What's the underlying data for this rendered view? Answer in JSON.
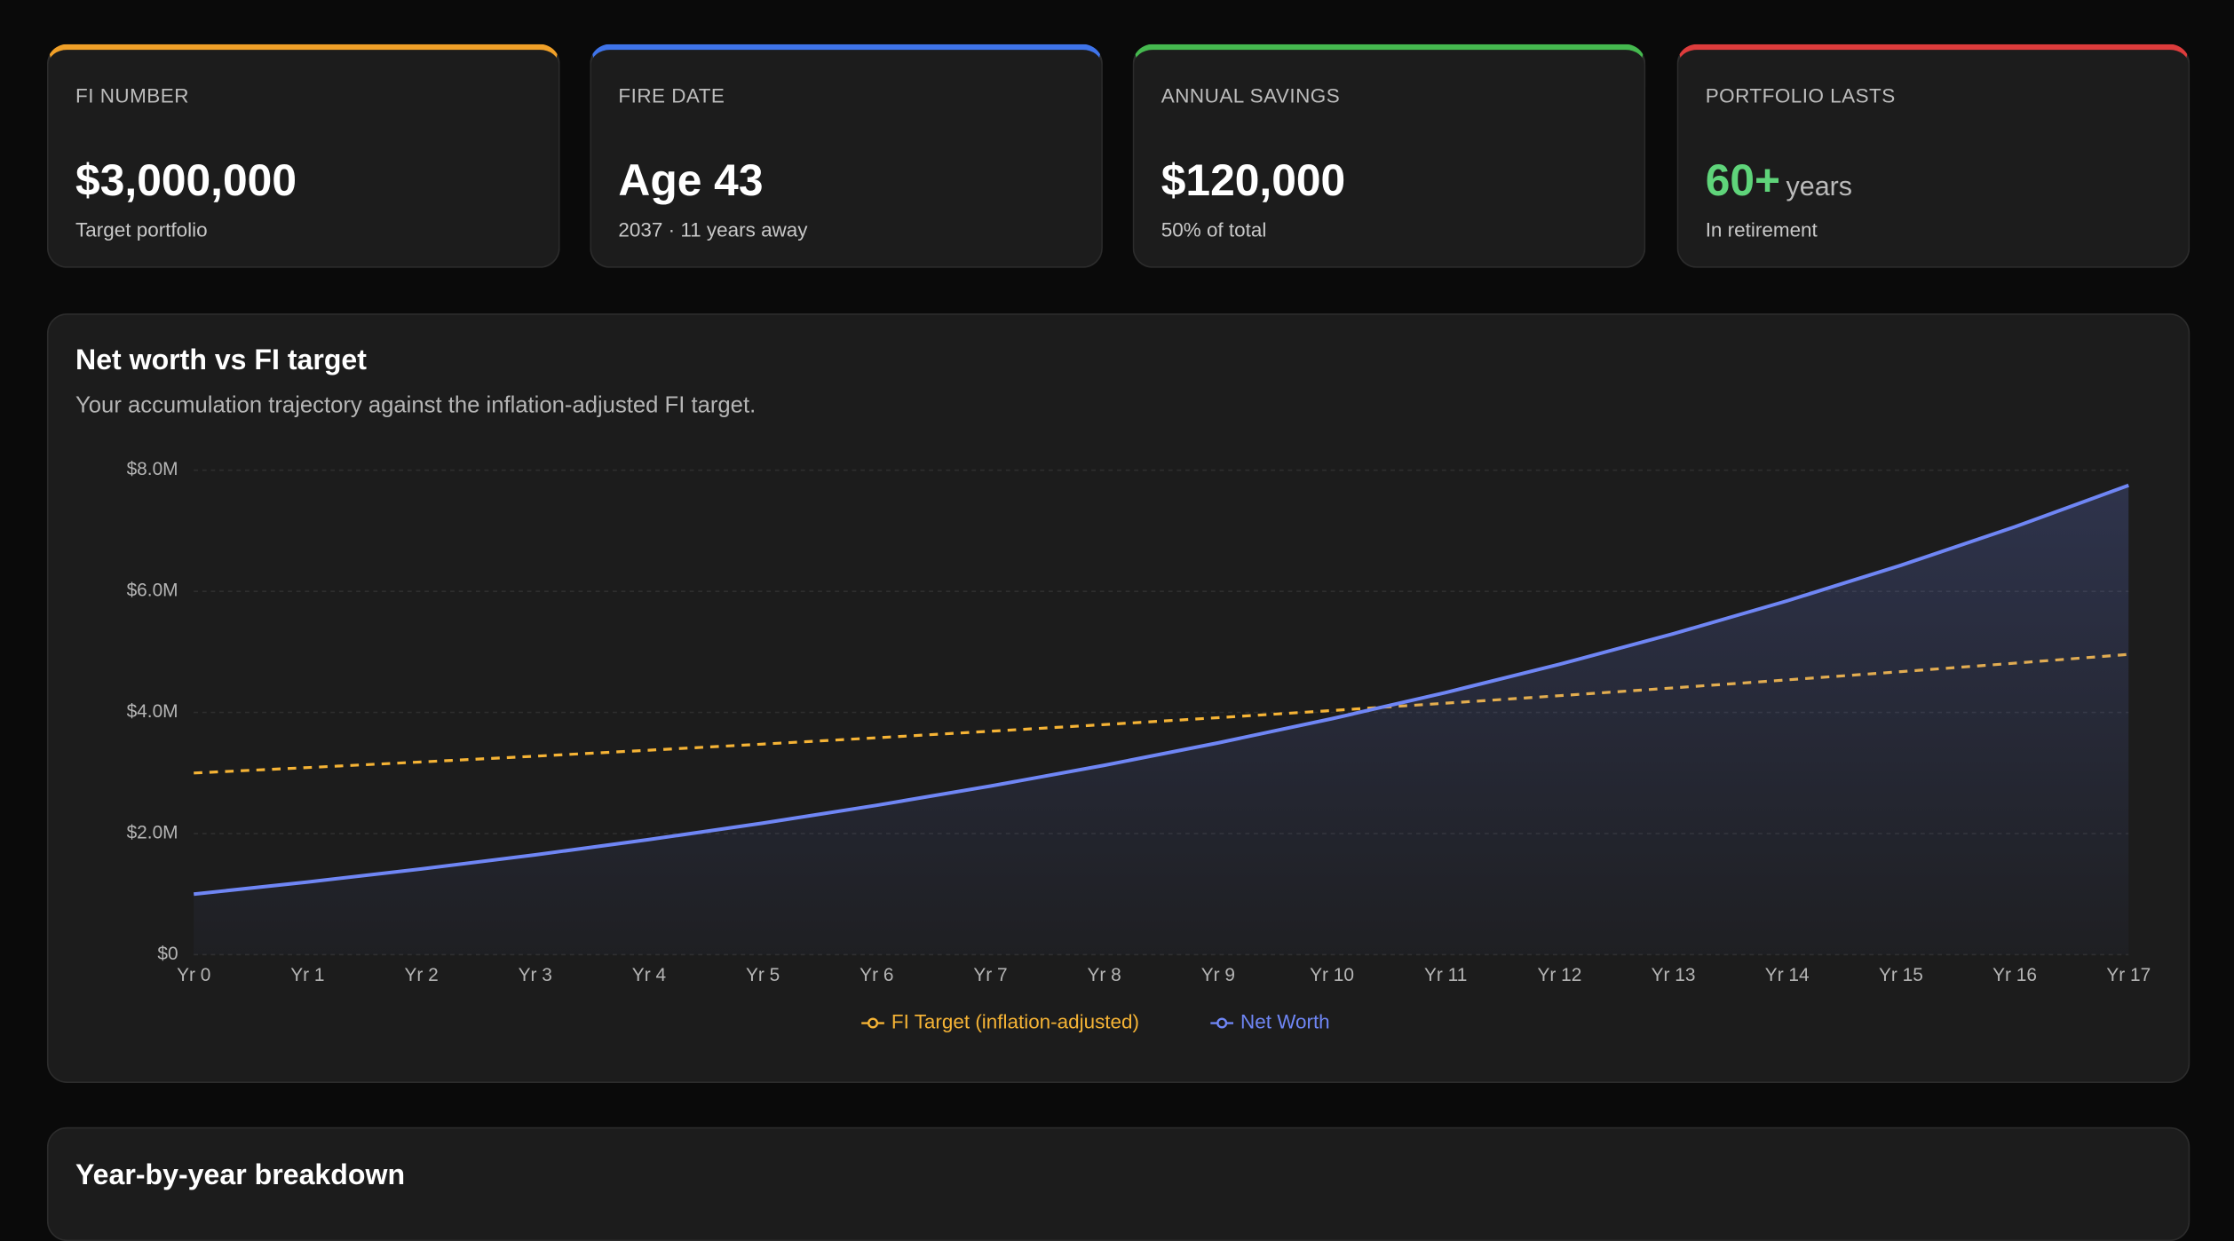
{
  "cards": [
    {
      "label": "FI NUMBER",
      "value": "$3,000,000",
      "note": "Target portfolio"
    },
    {
      "label": "FIRE DATE",
      "value": "Age 43",
      "note": "2037 · 11 years away"
    },
    {
      "label": "ANNUAL SAVINGS",
      "value": "$120,000",
      "note": "50% of total"
    },
    {
      "label": "PORTFOLIO LASTS",
      "value": "60+",
      "unit": "years",
      "note": "In retirement"
    }
  ],
  "chart_data": {
    "type": "line",
    "title": "Net worth vs FI target",
    "subtitle": "Your accumulation trajectory against the inflation-adjusted FI target.",
    "categories": [
      "Yr 0",
      "Yr 1",
      "Yr 2",
      "Yr 3",
      "Yr 4",
      "Yr 5",
      "Yr 6",
      "Yr 7",
      "Yr 8",
      "Yr 9",
      "Yr 10",
      "Yr 11",
      "Yr 12",
      "Yr 13",
      "Yr 14",
      "Yr 15",
      "Yr 16",
      "Yr 17"
    ],
    "series": [
      {
        "name": "FI Target (inflation-adjusted)",
        "color": "#f5b335",
        "dashed": true,
        "values": [
          3000000,
          3090000,
          3183000,
          3278000,
          3377000,
          3478000,
          3582000,
          3690000,
          3800000,
          3914000,
          4032000,
          4153000,
          4277000,
          4406000,
          4538000,
          4674000,
          4814000,
          4959000
        ]
      },
      {
        "name": "Net Worth",
        "color": "#6f86f5",
        "area": true,
        "values": [
          1000000,
          1200000,
          1416000,
          1649000,
          1901000,
          2173000,
          2467000,
          2785000,
          3127000,
          3498000,
          3897000,
          4329000,
          4795000,
          5299000,
          5843000,
          6430000,
          7065000,
          7750000
        ]
      }
    ],
    "ylim": [
      0,
      8000000
    ],
    "yticks": [
      {
        "value": 0,
        "label": "$0"
      },
      {
        "value": 2000000,
        "label": "$2.0M"
      },
      {
        "value": 4000000,
        "label": "$4.0M"
      },
      {
        "value": 6000000,
        "label": "$6.0M"
      },
      {
        "value": 8000000,
        "label": "$8.0M"
      }
    ],
    "grid": true,
    "legend": "bottom"
  },
  "breakdown": {
    "title": "Year-by-year breakdown"
  }
}
